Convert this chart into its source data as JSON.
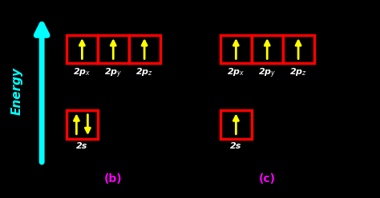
{
  "bg_color": "#000000",
  "arrow_color": "#00FFFF",
  "box_edge_color": "#FF0000",
  "electron_arrow_color": "#FFFF00",
  "label_color": "#FFFFFF",
  "panel_label_color": "#FF00FF",
  "b_label": "(b)",
  "c_label": "(c)",
  "energy_text": "Energy",
  "orbitals_2p": [
    "2p$_x$",
    "2p$_y$",
    "2p$_z$"
  ],
  "orbital_2s": "2s",
  "figsize": [
    4.74,
    2.48
  ],
  "dpi": 100,
  "xlim": [
    0,
    10
  ],
  "ylim": [
    0,
    5
  ]
}
